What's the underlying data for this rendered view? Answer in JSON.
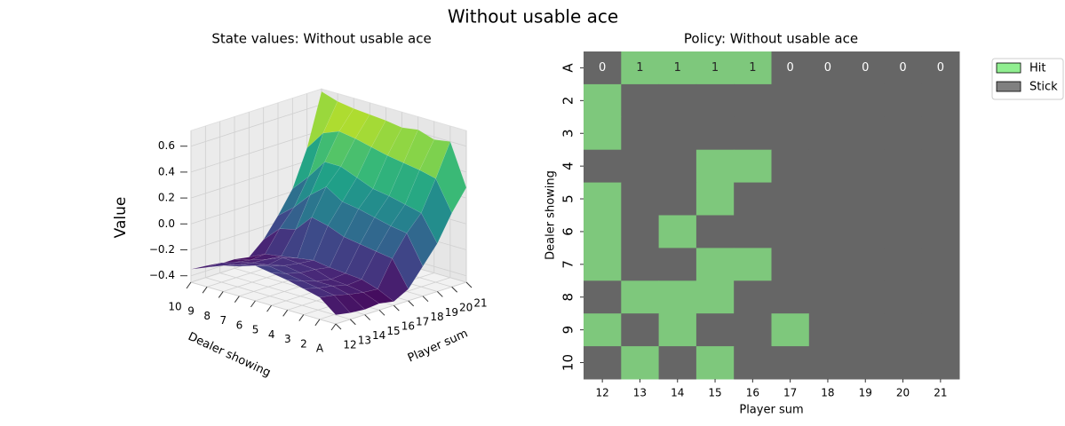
{
  "title": "Without usable ace",
  "chart_data": [
    {
      "type": "surface",
      "title": "State values: Without usable ace",
      "xlabel": "Player sum",
      "ylabel": "Dealer showing",
      "zlabel": "Value",
      "x": [
        12,
        13,
        14,
        15,
        16,
        17,
        18,
        19,
        20,
        21
      ],
      "y": [
        "A",
        "2",
        "3",
        "4",
        "5",
        "6",
        "7",
        "8",
        "9",
        "10"
      ],
      "z": [
        [
          -0.38,
          -0.4,
          -0.41,
          -0.4,
          -0.42,
          -0.36,
          -0.22,
          -0.08,
          0.12,
          0.28
        ],
        [
          -0.28,
          -0.3,
          -0.33,
          -0.35,
          -0.36,
          -0.16,
          0.0,
          0.12,
          0.35,
          0.6
        ],
        [
          -0.25,
          -0.28,
          -0.3,
          -0.33,
          -0.32,
          -0.14,
          0.02,
          0.15,
          0.38,
          0.58
        ],
        [
          -0.22,
          -0.26,
          -0.3,
          -0.32,
          -0.31,
          -0.12,
          0.05,
          0.18,
          0.4,
          0.62
        ],
        [
          -0.2,
          -0.24,
          -0.27,
          -0.28,
          -0.3,
          -0.1,
          0.08,
          0.2,
          0.42,
          0.6
        ],
        [
          -0.18,
          -0.22,
          -0.25,
          -0.27,
          -0.28,
          -0.05,
          0.1,
          0.25,
          0.45,
          0.62
        ],
        [
          -0.22,
          -0.25,
          -0.28,
          -0.26,
          -0.3,
          -0.02,
          0.18,
          0.3,
          0.48,
          0.63
        ],
        [
          -0.25,
          -0.28,
          -0.3,
          -0.31,
          -0.32,
          -0.15,
          0.08,
          0.3,
          0.5,
          0.64
        ],
        [
          -0.3,
          -0.3,
          -0.33,
          -0.35,
          -0.34,
          -0.18,
          -0.05,
          0.15,
          0.45,
          0.66
        ],
        [
          -0.35,
          -0.36,
          -0.38,
          -0.38,
          -0.4,
          -0.3,
          -0.15,
          0.02,
          0.3,
          0.7
        ]
      ],
      "xlim": [
        12,
        21
      ],
      "xticks": [
        12,
        13,
        14,
        15,
        16,
        17,
        18,
        19,
        20,
        21
      ],
      "zlim": [
        -0.45,
        0.72
      ],
      "zticks": [
        {
          "value": -0.4,
          "label": "−0.4"
        },
        {
          "value": -0.2,
          "label": "−0.2"
        },
        {
          "value": 0,
          "label": "0.0"
        },
        0.2,
        0.4,
        0.6
      ],
      "colormap": "viridis",
      "grid": true
    },
    {
      "type": "heatmap",
      "title": "Policy: Without usable ace",
      "xlabel": "Player sum",
      "ylabel": "Dealer showing",
      "x": [
        12,
        13,
        14,
        15,
        16,
        17,
        18,
        19,
        20,
        21
      ],
      "y": [
        "A",
        "2",
        "3",
        "4",
        "5",
        "6",
        "7",
        "8",
        "9",
        "10"
      ],
      "values": [
        [
          0,
          1,
          1,
          1,
          1,
          0,
          0,
          0,
          0,
          0
        ],
        [
          1,
          0,
          0,
          0,
          0,
          0,
          0,
          0,
          0,
          0
        ],
        [
          1,
          0,
          0,
          0,
          0,
          0,
          0,
          0,
          0,
          0
        ],
        [
          0,
          0,
          0,
          1,
          1,
          0,
          0,
          0,
          0,
          0
        ],
        [
          1,
          0,
          0,
          1,
          0,
          0,
          0,
          0,
          0,
          0
        ],
        [
          1,
          0,
          1,
          0,
          0,
          0,
          0,
          0,
          0,
          0
        ],
        [
          1,
          0,
          0,
          1,
          1,
          0,
          0,
          0,
          0,
          0
        ],
        [
          0,
          1,
          1,
          1,
          0,
          0,
          0,
          0,
          0,
          0
        ],
        [
          1,
          0,
          1,
          0,
          0,
          1,
          0,
          0,
          0,
          0
        ],
        [
          0,
          1,
          0,
          1,
          0,
          0,
          0,
          0,
          0,
          0
        ]
      ],
      "colors": [
        "#666666",
        "#7ec87c"
      ],
      "annotation_colors": [
        "#ffffff",
        "#262626"
      ],
      "annotated_row_count": 1,
      "legend": [
        {
          "name": "Hit",
          "color": "#90ee90"
        },
        {
          "name": "Stick",
          "color": "#808080"
        }
      ],
      "legend_position": "upper right outside"
    }
  ]
}
